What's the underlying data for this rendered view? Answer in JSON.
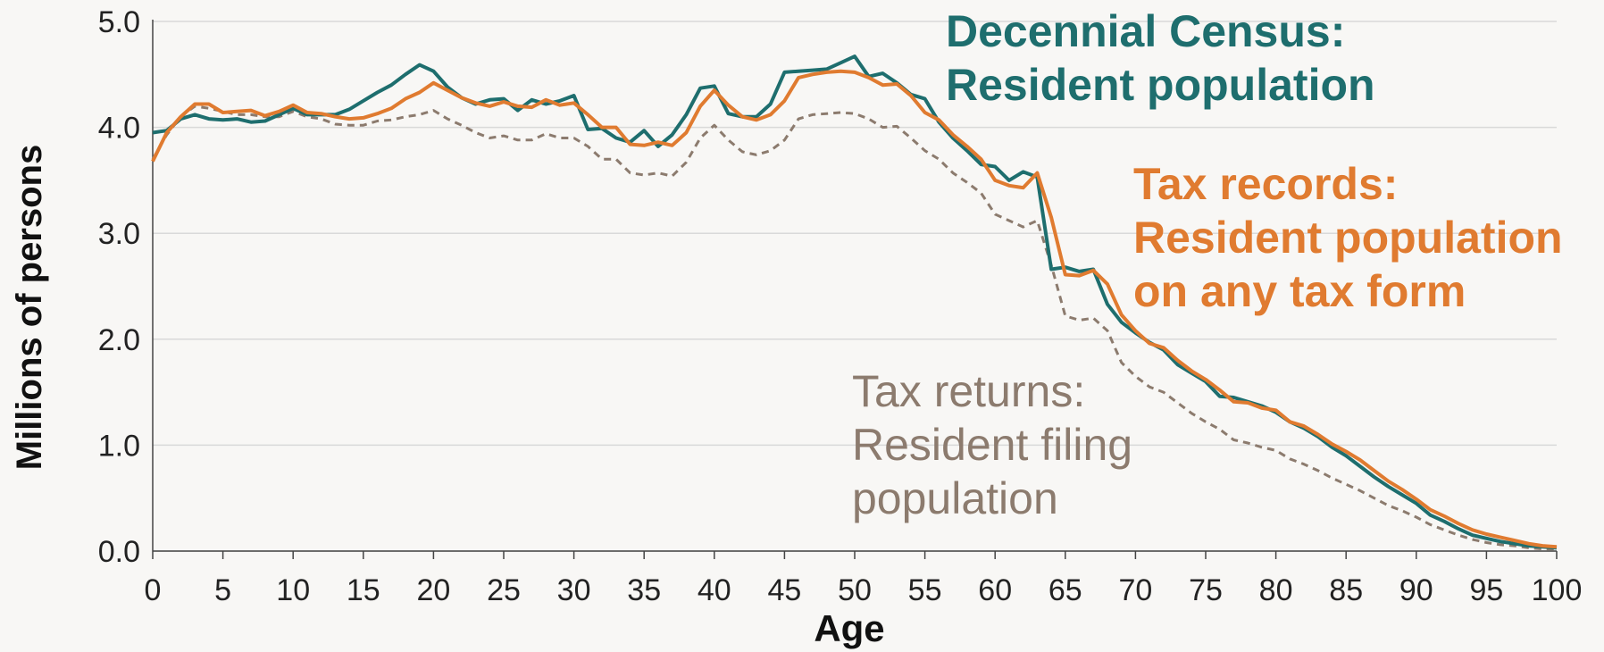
{
  "chart_data": {
    "type": "line",
    "xlabel": "Age",
    "ylabel": "Millions of persons",
    "x": [
      0,
      1,
      2,
      3,
      4,
      5,
      6,
      7,
      8,
      9,
      10,
      11,
      12,
      13,
      14,
      15,
      16,
      17,
      18,
      19,
      20,
      21,
      22,
      23,
      24,
      25,
      26,
      27,
      28,
      29,
      30,
      31,
      32,
      33,
      34,
      35,
      36,
      37,
      38,
      39,
      40,
      41,
      42,
      43,
      44,
      45,
      46,
      47,
      48,
      49,
      50,
      51,
      52,
      53,
      54,
      55,
      56,
      57,
      58,
      59,
      60,
      61,
      62,
      63,
      64,
      65,
      66,
      67,
      68,
      69,
      70,
      71,
      72,
      73,
      74,
      75,
      76,
      77,
      78,
      79,
      80,
      81,
      82,
      83,
      84,
      85,
      86,
      87,
      88,
      89,
      90,
      91,
      92,
      93,
      94,
      95,
      96,
      97,
      98,
      99,
      100
    ],
    "series": [
      {
        "name": "Decennial Census: Resident population",
        "color": "#1e6e6e",
        "dashed": false,
        "values": [
          3.95,
          3.97,
          4.08,
          4.12,
          4.08,
          4.07,
          4.08,
          4.05,
          4.06,
          4.12,
          4.18,
          4.12,
          4.12,
          4.12,
          4.17,
          4.25,
          4.33,
          4.4,
          4.5,
          4.59,
          4.53,
          4.38,
          4.28,
          4.22,
          4.26,
          4.27,
          4.16,
          4.26,
          4.22,
          4.25,
          4.3,
          3.98,
          3.99,
          3.9,
          3.86,
          3.97,
          3.82,
          3.93,
          4.12,
          4.37,
          4.39,
          4.13,
          4.1,
          4.1,
          4.22,
          4.52,
          4.53,
          4.54,
          4.55,
          4.61,
          4.67,
          4.48,
          4.51,
          4.42,
          4.31,
          4.27,
          4.05,
          3.9,
          3.78,
          3.65,
          3.63,
          3.5,
          3.58,
          3.53,
          2.66,
          2.68,
          2.64,
          2.66,
          2.33,
          2.16,
          2.06,
          1.97,
          1.9,
          1.76,
          1.68,
          1.6,
          1.46,
          1.45,
          1.41,
          1.37,
          1.31,
          1.22,
          1.16,
          1.08,
          0.98,
          0.9,
          0.8,
          0.7,
          0.61,
          0.53,
          0.45,
          0.34,
          0.28,
          0.21,
          0.15,
          0.12,
          0.09,
          0.07,
          0.05,
          0.04,
          0.03
        ]
      },
      {
        "name": "Tax records: Resident population on any tax form",
        "color": "#e07b30",
        "dashed": false,
        "values": [
          3.68,
          3.95,
          4.1,
          4.22,
          4.22,
          4.14,
          4.15,
          4.16,
          4.11,
          4.15,
          4.21,
          4.14,
          4.13,
          4.1,
          4.08,
          4.09,
          4.13,
          4.18,
          4.27,
          4.33,
          4.42,
          4.35,
          4.28,
          4.23,
          4.2,
          4.24,
          4.2,
          4.19,
          4.26,
          4.21,
          4.23,
          4.12,
          4.0,
          4.0,
          3.84,
          3.83,
          3.86,
          3.83,
          3.95,
          4.2,
          4.35,
          4.21,
          4.1,
          4.07,
          4.12,
          4.25,
          4.47,
          4.5,
          4.52,
          4.53,
          4.52,
          4.47,
          4.4,
          4.41,
          4.3,
          4.14,
          4.07,
          3.93,
          3.82,
          3.7,
          3.5,
          3.45,
          3.43,
          3.57,
          3.15,
          2.61,
          2.6,
          2.65,
          2.52,
          2.23,
          2.08,
          1.96,
          1.92,
          1.8,
          1.7,
          1.62,
          1.52,
          1.41,
          1.4,
          1.35,
          1.33,
          1.22,
          1.18,
          1.1,
          1.01,
          0.94,
          0.86,
          0.76,
          0.66,
          0.58,
          0.49,
          0.39,
          0.33,
          0.26,
          0.2,
          0.16,
          0.13,
          0.1,
          0.07,
          0.05,
          0.04
        ]
      },
      {
        "name": "Tax returns: Resident filing population",
        "color": "#8c7b6e",
        "dashed": true,
        "values": [
          3.7,
          3.93,
          4.1,
          4.2,
          4.18,
          4.15,
          4.12,
          4.12,
          4.1,
          4.1,
          4.15,
          4.1,
          4.08,
          4.03,
          4.02,
          4.02,
          4.06,
          4.07,
          4.1,
          4.12,
          4.16,
          4.08,
          4.02,
          3.95,
          3.9,
          3.92,
          3.88,
          3.88,
          3.94,
          3.9,
          3.9,
          3.82,
          3.7,
          3.7,
          3.57,
          3.55,
          3.57,
          3.54,
          3.67,
          3.9,
          4.02,
          3.88,
          3.77,
          3.74,
          3.78,
          3.88,
          4.08,
          4.12,
          4.13,
          4.14,
          4.13,
          4.08,
          4.0,
          4.01,
          3.9,
          3.78,
          3.7,
          3.57,
          3.48,
          3.38,
          3.18,
          3.12,
          3.06,
          3.12,
          2.7,
          2.22,
          2.18,
          2.2,
          2.08,
          1.78,
          1.65,
          1.55,
          1.5,
          1.4,
          1.3,
          1.22,
          1.15,
          1.05,
          1.02,
          0.98,
          0.95,
          0.87,
          0.82,
          0.76,
          0.69,
          0.63,
          0.57,
          0.5,
          0.43,
          0.38,
          0.32,
          0.25,
          0.2,
          0.15,
          0.11,
          0.08,
          0.06,
          0.05,
          0.03,
          0.02,
          0.02
        ]
      }
    ],
    "annotations": [
      {
        "lines": [
          "Decennial Census:",
          "Resident population"
        ],
        "color": "#1e6e6e",
        "bold": true
      },
      {
        "lines": [
          "Tax records:",
          "Resident population",
          "on any tax form"
        ],
        "color": "#e07b30",
        "bold": true
      },
      {
        "lines": [
          "Tax returns:",
          "Resident filing",
          "population"
        ],
        "color": "#8c7b6e",
        "bold": false
      }
    ],
    "xlim": [
      0,
      100
    ],
    "xticks": [
      0,
      5,
      10,
      15,
      20,
      25,
      30,
      35,
      40,
      45,
      50,
      55,
      60,
      65,
      70,
      75,
      80,
      85,
      90,
      95,
      100
    ],
    "ylim": [
      0,
      5
    ],
    "yticks": [
      {
        "value": 0,
        "label": "0.0"
      },
      {
        "value": 1,
        "label": "1.0"
      },
      {
        "value": 2,
        "label": "2.0"
      },
      {
        "value": 3,
        "label": "3.0"
      },
      {
        "value": 4,
        "label": "4.0"
      },
      {
        "value": 5,
        "label": "5.0"
      }
    ],
    "grid": true
  }
}
